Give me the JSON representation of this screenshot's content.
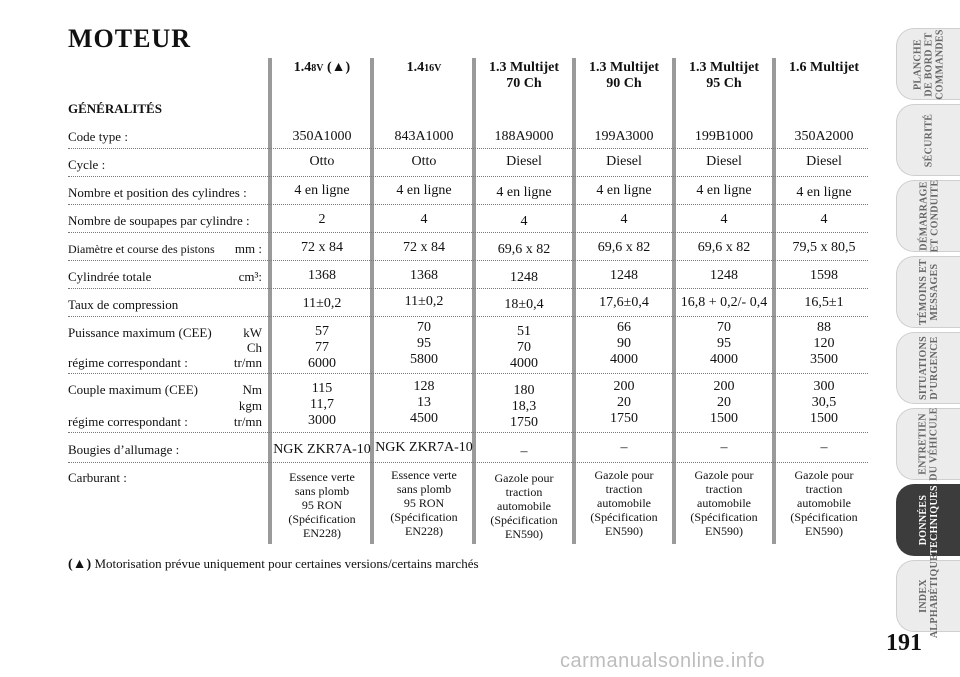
{
  "title": "MOTEUR",
  "section": "GÉNÉRALITÉS",
  "columns": [
    {
      "main": "1.4",
      "sc": "8V",
      "mark": "(▲)",
      "line2": ""
    },
    {
      "main": "1.4",
      "sc": "16V",
      "mark": "",
      "line2": ""
    },
    {
      "main": "1.3 Multijet",
      "sc": "",
      "mark": "",
      "line2": "70 Ch"
    },
    {
      "main": "1.3 Multijet",
      "sc": "",
      "mark": "",
      "line2": "90 Ch"
    },
    {
      "main": "1.3 Multijet",
      "sc": "",
      "mark": "",
      "line2": "95 Ch"
    },
    {
      "main": "1.6 Multijet",
      "sc": "",
      "mark": "",
      "line2": ""
    }
  ],
  "rows": {
    "code_type": {
      "label": "Code type :",
      "values": [
        "350A1000",
        "843A1000",
        "188A9000",
        "199A3000",
        "199B1000",
        "350A2000"
      ]
    },
    "cycle": {
      "label": "Cycle :",
      "values": [
        "Otto",
        "Otto",
        "Diesel",
        "Diesel",
        "Diesel",
        "Diesel"
      ]
    },
    "cylindres": {
      "label": "Nombre et position des cylindres :",
      "values": [
        "4 en ligne",
        "4 en ligne",
        "4 en ligne",
        "4 en ligne",
        "4 en ligne",
        "4 en ligne"
      ]
    },
    "soupapes": {
      "label": "Nombre de soupapes par cylindre :",
      "values": [
        "2",
        "4",
        "4",
        "4",
        "4",
        "4"
      ]
    },
    "diametre": {
      "label": "Diamètre et course des pistons",
      "unit": "mm :",
      "values": [
        "72 x 84",
        "72 x 84",
        "69,6 x 82",
        "69,6 x 82",
        "69,6 x 82",
        "79,5 x 80,5"
      ]
    },
    "cylindree": {
      "label": "Cylindrée totale",
      "unit": "cm³:",
      "values": [
        "1368",
        "1368",
        "1248",
        "1248",
        "1248",
        "1598"
      ]
    },
    "compression": {
      "label": "Taux de compression",
      "values": [
        "11±0,2",
        "11±0,2",
        "18±0,4",
        "17,6±0,4",
        "16,8 + 0,2/- 0,4",
        "16,5±1"
      ]
    },
    "puissance": {
      "label": "Puissance maximum (CEE)",
      "unit1": "kW",
      "unit2": "Ch",
      "label2": "régime correspondant :",
      "unit3": "tr/mn",
      "values": [
        [
          "57",
          "77",
          "6000"
        ],
        [
          "70",
          "95",
          "5800"
        ],
        [
          "51",
          "70",
          "4000"
        ],
        [
          "66",
          "90",
          "4000"
        ],
        [
          "70",
          "95",
          "4000"
        ],
        [
          "88",
          "120",
          "3500"
        ]
      ]
    },
    "couple": {
      "label": "Couple maximum (CEE)",
      "unit1": "Nm",
      "unit2": "kgm",
      "label2": "régime correspondant :",
      "unit3": "tr/mn",
      "values": [
        [
          "115",
          "11,7",
          "3000"
        ],
        [
          "128",
          "13",
          "4500"
        ],
        [
          "180",
          "18,3",
          "1750"
        ],
        [
          "200",
          "20",
          "1750"
        ],
        [
          "200",
          "20",
          "1500"
        ],
        [
          "300",
          "30,5",
          "1500"
        ]
      ]
    },
    "bougies": {
      "label": "Bougies d’allumage :",
      "values": [
        "NGK ZKR7A-10",
        "NGK ZKR7A-10",
        "–",
        "–",
        "–",
        "–"
      ]
    },
    "carburant": {
      "label": "Carburant :",
      "values": [
        [
          "Essence verte",
          "sans plomb",
          "95 RON",
          "(Spécification",
          "EN228)"
        ],
        [
          "Essence verte",
          "sans plomb",
          "95 RON",
          "(Spécification",
          "EN228)"
        ],
        [
          "Gazole pour",
          "traction",
          "automobile",
          "(Spécification",
          "EN590)"
        ],
        [
          "Gazole pour",
          "traction",
          "automobile",
          "(Spécification",
          "EN590)"
        ],
        [
          "Gazole pour",
          "traction",
          "automobile",
          "(Spécification",
          "EN590)"
        ],
        [
          "Gazole pour",
          "traction",
          "automobile",
          "(Spécification",
          "EN590)"
        ]
      ]
    }
  },
  "footnote": {
    "mark": "(▲)",
    "text": "Motorisation prévue uniquement pour certaines versions/certains marchés"
  },
  "sidetabs": [
    {
      "l1": "PLANCHE",
      "l2": "DE BORD ET",
      "l3": "COMMANDES",
      "active": false
    },
    {
      "l1": "SÉCURITÉ",
      "l2": "",
      "l3": "",
      "active": false
    },
    {
      "l1": "DÉMARRAGE",
      "l2": "ET CONDUITE",
      "l3": "",
      "active": false
    },
    {
      "l1": "TÉMOINS ET",
      "l2": "MESSAGES",
      "l3": "",
      "active": false
    },
    {
      "l1": "SITUATIONS",
      "l2": "D’URGENCE",
      "l3": "",
      "active": false
    },
    {
      "l1": "ENTRETIEN",
      "l2": "DU VÉHICULE",
      "l3": "",
      "active": false
    },
    {
      "l1": "DONNÉES",
      "l2": "TECHNIQUES",
      "l3": "",
      "active": true
    },
    {
      "l1": "INDEX",
      "l2": "ALPHABÉTIQUE",
      "l3": "",
      "active": false
    }
  ],
  "page_number": "191",
  "watermark": "carmanualsonline.info"
}
